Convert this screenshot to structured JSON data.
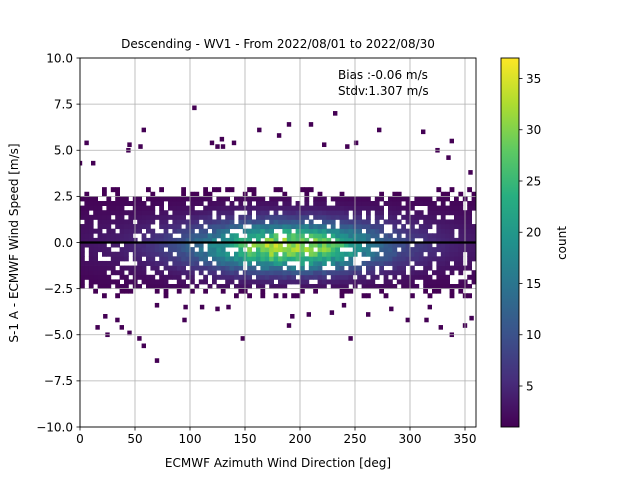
{
  "chart_data": {
    "type": "heatmap",
    "title": "Descending - WV1 - From 2022/08/01 to 2022/08/30",
    "xlabel": "ECMWF Azimuth Wind Direction [deg]",
    "ylabel": "S-1 A - ECMWF Wind Speed [m/s]",
    "xlim": [
      0,
      360
    ],
    "ylim": [
      -10,
      10
    ],
    "xticks": [
      "0",
      "50",
      "100",
      "150",
      "200",
      "250",
      "300",
      "350"
    ],
    "yticks": [
      "10.0",
      "7.5",
      "5.0",
      "2.5",
      "0.0",
      "−2.5",
      "−5.0",
      "−7.5",
      "−10.0"
    ],
    "grid": true,
    "annotation": [
      "Bias :-0.06 m/s",
      "Stdv:1.307 m/s"
    ],
    "zero_line": 0,
    "colorbar": {
      "label": "count",
      "ticks": [
        "5",
        "10",
        "15",
        "20",
        "25",
        "30",
        "35"
      ],
      "range": [
        1,
        37
      ],
      "colormap": "viridis"
    },
    "density_model": {
      "bin_width_deg": 4,
      "bin_height_ms": 0.25,
      "core_center_x": 190,
      "core_center_y": -0.25,
      "core_max_count": 37,
      "band_y_range": [
        -2.5,
        2.5
      ]
    },
    "scattered_outlier_points": [
      [
        104,
        7.3
      ],
      [
        210,
        6.4
      ],
      [
        190,
        6.4
      ],
      [
        232,
        7.0
      ],
      [
        58,
        6.1
      ],
      [
        129,
        5.6
      ],
      [
        163,
        6.1
      ],
      [
        181,
        5.8
      ],
      [
        251,
        5.4
      ],
      [
        338,
        5.5
      ],
      [
        312,
        6.0
      ],
      [
        272,
        6.1
      ],
      [
        243,
        5.2
      ],
      [
        222,
        5.3
      ],
      [
        130,
        5.2
      ],
      [
        44,
        5.0
      ],
      [
        45,
        5.3
      ],
      [
        55,
        5.2
      ],
      [
        12,
        4.3
      ],
      [
        0,
        4.3
      ],
      [
        6,
        5.4
      ],
      [
        120,
        5.4
      ],
      [
        125,
        5.2
      ],
      [
        140,
        5.4
      ],
      [
        325,
        5.0
      ],
      [
        335,
        4.6
      ],
      [
        355,
        3.8
      ],
      [
        70,
        -6.4
      ],
      [
        58,
        -5.6
      ],
      [
        54,
        -5.2
      ],
      [
        45,
        -4.9
      ],
      [
        38,
        -4.6
      ],
      [
        34,
        -4.2
      ],
      [
        16,
        -4.6
      ],
      [
        23,
        -4.0
      ],
      [
        25,
        -5.0
      ],
      [
        95,
        -4.2
      ],
      [
        148,
        -5.2
      ],
      [
        190,
        -4.5
      ],
      [
        193,
        -4.0
      ],
      [
        208,
        -3.9
      ],
      [
        246,
        -5.2
      ],
      [
        262,
        -3.9
      ],
      [
        298,
        -4.2
      ],
      [
        315,
        -4.2
      ],
      [
        328,
        -4.6
      ],
      [
        338,
        -5.0
      ],
      [
        350,
        -4.5
      ],
      [
        356,
        -4.1
      ],
      [
        283,
        -3.6
      ],
      [
        240,
        -3.4
      ],
      [
        229,
        -3.8
      ],
      [
        135,
        -3.5
      ],
      [
        125,
        -3.6
      ],
      [
        96,
        -3.5
      ],
      [
        111,
        -3.5
      ],
      [
        70,
        -3.4
      ],
      [
        318,
        -3.5
      ]
    ]
  }
}
